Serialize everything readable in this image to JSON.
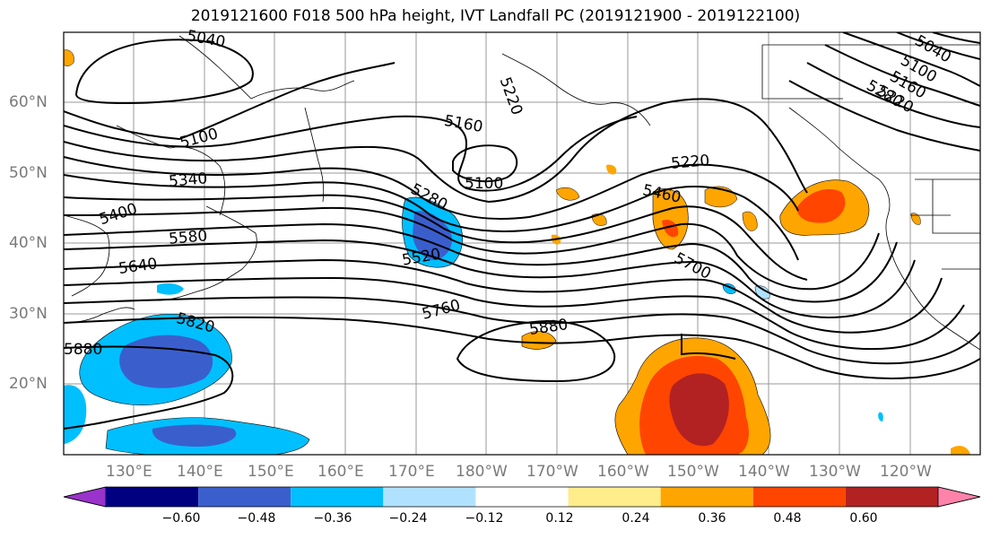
{
  "title": "2019121600 F018 500 hPa height, IVT Landfall PC (2019121900 - 2019122100)",
  "lat_labels": [
    "60°N",
    "50°N",
    "40°N",
    "30°N",
    "20°N"
  ],
  "lon_labels": [
    "130°E",
    "140°E",
    "150°E",
    "160°E",
    "170°E",
    "180°W",
    "170°W",
    "160°W",
    "150°W",
    "140°W",
    "130°W",
    "120°W"
  ],
  "contour_labels": [
    "5040",
    "5100",
    "5160",
    "5220",
    "5100",
    "5220",
    "5340",
    "5400",
    "5580",
    "5640",
    "5280",
    "5520",
    "5460",
    "5700",
    "5760",
    "5820",
    "5880",
    "5880",
    "5040",
    "5100",
    "5160",
    "5220",
    "5280"
  ],
  "colorbar": {
    "ticks": [
      "−0.60",
      "−0.48",
      "−0.36",
      "−0.24",
      "−0.12",
      "0.12",
      "0.24",
      "0.36",
      "0.48",
      "0.60"
    ],
    "colors": [
      "#9933cc",
      "#000080",
      "#3a5fcd",
      "#00bfff",
      "#b0e2ff",
      "#ffffff",
      "#ffec8b",
      "#ffa500",
      "#ff4500",
      "#b22222",
      "#ff82ab"
    ]
  }
}
